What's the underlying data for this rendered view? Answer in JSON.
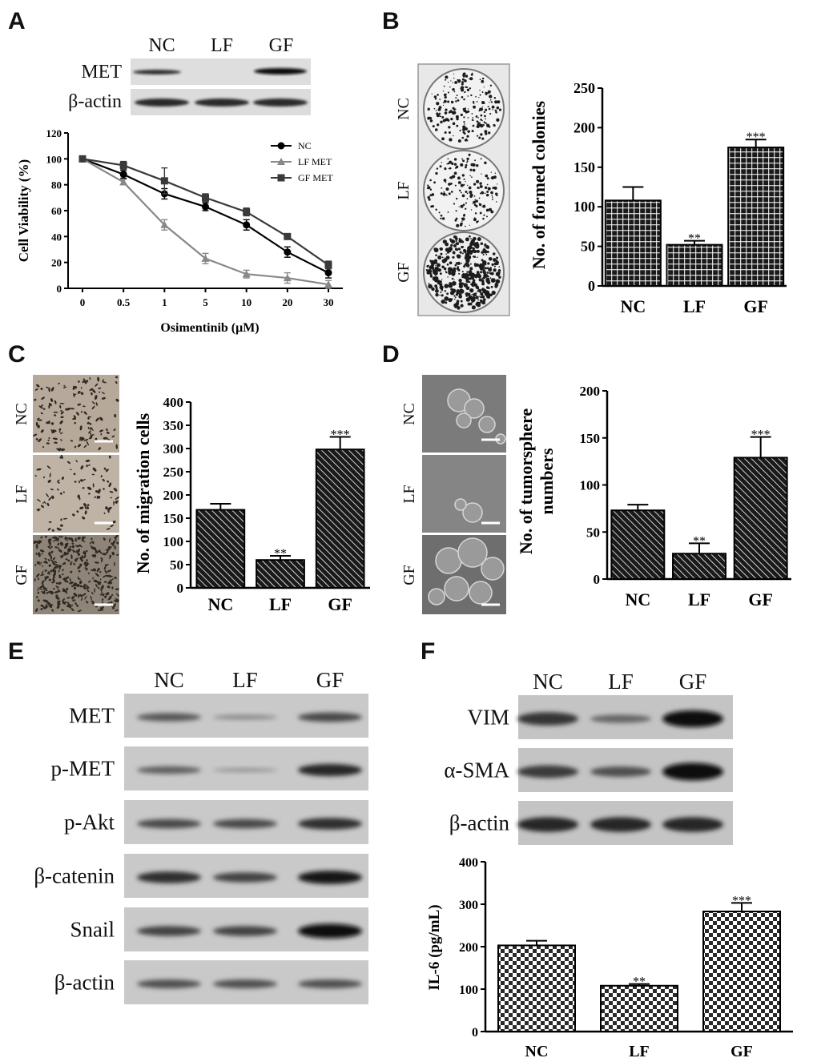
{
  "panels": {
    "a": {
      "letter": "A",
      "blot": {
        "lanes": [
          "NC",
          "LF",
          "GF"
        ],
        "rows": [
          "MET",
          "β-actin"
        ]
      }
    },
    "b": {
      "letter": "B",
      "rows": [
        "NC",
        "LF",
        "GF"
      ]
    },
    "c": {
      "letter": "C",
      "rows": [
        "NC",
        "LF",
        "GF"
      ]
    },
    "d": {
      "letter": "D",
      "rows": [
        "NC",
        "LF",
        "GF"
      ]
    },
    "e": {
      "letter": "E",
      "lanes": [
        "NC",
        "LF",
        "GF"
      ],
      "rows": [
        {
          "label": "MET",
          "intensity": [
            0.45,
            0.12,
            0.55
          ]
        },
        {
          "label": "p-MET",
          "intensity": [
            0.4,
            0.05,
            0.8
          ]
        },
        {
          "label": "p-Akt",
          "intensity": [
            0.55,
            0.55,
            0.75
          ]
        },
        {
          "label": "β-catenin",
          "intensity": [
            0.75,
            0.6,
            0.9
          ]
        },
        {
          "label": "Snail",
          "intensity": [
            0.6,
            0.6,
            1.0
          ]
        },
        {
          "label": "β-actin",
          "intensity": [
            0.5,
            0.5,
            0.5
          ]
        }
      ]
    },
    "f": {
      "letter": "F",
      "lanes": [
        "NC",
        "LF",
        "GF"
      ],
      "rows": [
        {
          "label": "VIM",
          "intensity": [
            0.7,
            0.35,
            0.95
          ]
        },
        {
          "label": "α-SMA",
          "intensity": [
            0.65,
            0.5,
            1.0
          ]
        },
        {
          "label": "β-actin",
          "intensity": [
            0.8,
            0.8,
            0.8
          ]
        }
      ]
    }
  },
  "chart_data": [
    {
      "panel": "A",
      "type": "line",
      "xlabel": "Osimentinib (μM)",
      "ylabel": "Cell Viability (%)",
      "x_categories": [
        "0",
        "0.5",
        "1",
        "5",
        "10",
        "20",
        "30"
      ],
      "ylim": [
        0,
        120
      ],
      "yticks": [
        0,
        20,
        40,
        60,
        80,
        100,
        120
      ],
      "legend_position": "top-right",
      "series": [
        {
          "name": "NC",
          "marker": "circle",
          "color": "#000000",
          "values": [
            100,
            88,
            73,
            63,
            49,
            28,
            12
          ],
          "errors": [
            1,
            3,
            4,
            3,
            4,
            4,
            4
          ]
        },
        {
          "name": "LF MET",
          "marker": "triangle",
          "color": "#888888",
          "values": [
            100,
            82,
            49,
            23,
            11,
            8,
            3
          ],
          "errors": [
            1,
            2,
            4,
            4,
            3,
            4,
            3
          ]
        },
        {
          "name": "GF MET",
          "marker": "square",
          "color": "#3a3a3a",
          "values": [
            100,
            95,
            83,
            70,
            59,
            40,
            18
          ],
          "errors": [
            1,
            3,
            10,
            3,
            3,
            2,
            3
          ]
        }
      ]
    },
    {
      "panel": "B",
      "type": "bar",
      "ylabel": "No. of formed colonies",
      "categories": [
        "NC",
        "LF",
        "GF"
      ],
      "values": [
        108,
        52,
        175
      ],
      "errors": [
        17,
        5,
        10
      ],
      "significance": [
        "",
        "**",
        "***"
      ],
      "ylim": [
        0,
        250
      ],
      "yticks": [
        0,
        50,
        100,
        150,
        200,
        250
      ],
      "fill": "grid"
    },
    {
      "panel": "C",
      "type": "bar",
      "ylabel": "No. of migration cells",
      "categories": [
        "NC",
        "LF",
        "GF"
      ],
      "values": [
        168,
        60,
        298
      ],
      "errors": [
        13,
        9,
        27
      ],
      "significance": [
        "",
        "**",
        "***"
      ],
      "ylim": [
        0,
        400
      ],
      "yticks": [
        0,
        50,
        100,
        150,
        200,
        250,
        300,
        350,
        400
      ],
      "fill": "hatch"
    },
    {
      "panel": "D",
      "type": "bar",
      "ylabel_lines": [
        "No. of tumorsphere",
        "numbers"
      ],
      "categories": [
        "NC",
        "LF",
        "GF"
      ],
      "values": [
        73,
        27,
        129
      ],
      "errors": [
        6,
        11,
        22
      ],
      "significance": [
        "",
        "**",
        "***"
      ],
      "ylim": [
        0,
        200
      ],
      "yticks": [
        0,
        50,
        100,
        150,
        200
      ],
      "fill": "hatch"
    },
    {
      "panel": "F",
      "type": "bar",
      "ylabel": "IL-6 (pg/mL)",
      "categories": [
        "NC",
        "LF",
        "GF"
      ],
      "values": [
        203,
        108,
        283
      ],
      "errors": [
        11,
        4,
        20
      ],
      "significance": [
        "",
        "**",
        "***"
      ],
      "ylim": [
        0,
        400
      ],
      "yticks": [
        0,
        100,
        200,
        300,
        400
      ],
      "fill": "checker"
    }
  ]
}
